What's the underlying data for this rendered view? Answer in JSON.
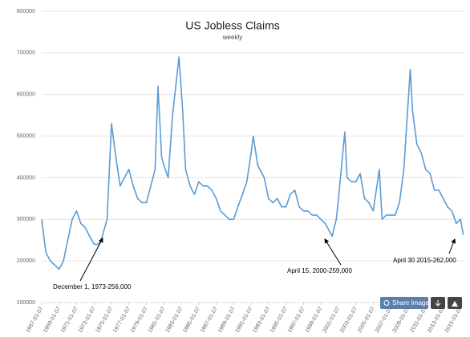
{
  "chart_data": {
    "type": "line",
    "title": "US Jobless Claims",
    "subtitle": "weekly",
    "x": [
      "1967-01-07",
      "1967-07-01",
      "1968-01-06",
      "1968-07-06",
      "1969-01-04",
      "1969-07-05",
      "1970-01-03",
      "1970-07-04",
      "1971-01-02",
      "1971-07-03",
      "1972-01-01",
      "1972-07-01",
      "1973-01-06",
      "1973-07-07",
      "1973-12-01",
      "1974-07-06",
      "1975-01-04",
      "1975-07-05",
      "1976-01-03",
      "1976-07-03",
      "1977-01-01",
      "1977-07-02",
      "1978-01-07",
      "1978-07-01",
      "1979-01-06",
      "1979-07-07",
      "1980-01-05",
      "1980-05-03",
      "1980-10-04",
      "1981-01-03",
      "1981-07-04",
      "1982-01-02",
      "1982-10-02",
      "1983-03-05",
      "1983-07-02",
      "1984-01-07",
      "1984-07-07",
      "1985-01-05",
      "1985-07-06",
      "1986-01-04",
      "1986-07-05",
      "1987-01-03",
      "1987-07-04",
      "1988-01-02",
      "1988-07-02",
      "1989-01-07",
      "1989-07-01",
      "1990-01-06",
      "1990-07-07",
      "1991-01-05",
      "1991-04-06",
      "1991-10-05",
      "1992-01-04",
      "1992-07-04",
      "1993-01-02",
      "1993-07-03",
      "1994-01-01",
      "1994-07-02",
      "1995-01-07",
      "1995-07-01",
      "1996-01-06",
      "1996-07-06",
      "1997-01-04",
      "1997-07-05",
      "1998-01-03",
      "1998-07-04",
      "1999-01-02",
      "1999-07-03",
      "2000-04-15",
      "2000-10-07",
      "2001-01-06",
      "2001-09-29",
      "2002-01-05",
      "2002-07-06",
      "2003-01-04",
      "2003-07-05",
      "2004-01-03",
      "2004-07-03",
      "2005-01-01",
      "2005-09-10",
      "2006-01-07",
      "2006-07-01",
      "2007-01-06",
      "2007-07-07",
      "2008-01-05",
      "2008-07-05",
      "2009-03-28",
      "2009-07-04",
      "2010-01-02",
      "2010-07-03",
      "2011-01-01",
      "2011-07-02",
      "2012-01-07",
      "2012-07-07",
      "2013-01-05",
      "2013-07-06",
      "2014-01-04",
      "2014-07-05",
      "2015-01-03",
      "2015-04-30"
    ],
    "series": [
      {
        "color": "#5b9bd5",
        "values": [
          300000,
          220000,
          200000,
          190000,
          180000,
          200000,
          250000,
          300000,
          320000,
          290000,
          280000,
          260000,
          240000,
          240000,
          256000,
          300000,
          530000,
          450000,
          380000,
          400000,
          420000,
          380000,
          350000,
          340000,
          340000,
          380000,
          420000,
          620000,
          450000,
          430000,
          400000,
          550000,
          690000,
          560000,
          420000,
          380000,
          360000,
          390000,
          380000,
          380000,
          370000,
          350000,
          320000,
          310000,
          300000,
          300000,
          330000,
          360000,
          390000,
          460000,
          500000,
          430000,
          420000,
          400000,
          350000,
          340000,
          350000,
          330000,
          330000,
          360000,
          370000,
          330000,
          320000,
          320000,
          310000,
          310000,
          300000,
          290000,
          259000,
          300000,
          350000,
          510000,
          400000,
          390000,
          390000,
          410000,
          350000,
          340000,
          320000,
          420000,
          300000,
          310000,
          310000,
          310000,
          340000,
          420000,
          660000,
          560000,
          480000,
          460000,
          420000,
          410000,
          370000,
          370000,
          350000,
          330000,
          320000,
          290000,
          300000,
          262000
        ]
      }
    ],
    "xlim": [
      "1967-01-07",
      "2015-05-09"
    ],
    "xticks": [
      "1967-01-07",
      "1969-01-07",
      "1971-01-07",
      "1973-01-07",
      "1975-01-07",
      "1977-01-07",
      "1979-01-07",
      "1981-01-07",
      "1983-01-07",
      "1985-01-07",
      "1987-01-07",
      "1989-01-07",
      "1991-01-07",
      "1993-01-07",
      "1995-01-07",
      "1997-01-07",
      "1999-01-07",
      "2001-01-07",
      "2003-01-07",
      "2005-01-07",
      "2007-01-07",
      "2009-01-07",
      "2011-01-07",
      "2013-01-07",
      "2015-01-07"
    ],
    "ylim": [
      100000,
      800000
    ],
    "yticks": [
      100000,
      200000,
      300000,
      400000,
      500000,
      600000,
      700000,
      800000
    ],
    "grid": true,
    "annotations": [
      "December 1, 1973-256,000",
      "April 15, 2000-259,000",
      "April 30 2015-262,000"
    ]
  },
  "ui": {
    "share_button": "Share Image"
  }
}
